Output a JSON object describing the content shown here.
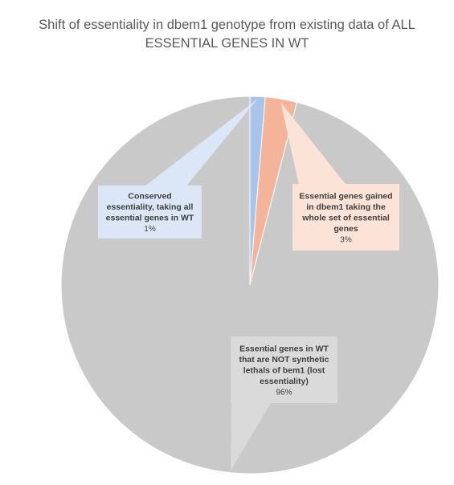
{
  "chart_data": {
    "type": "pie",
    "title_lines": [
      "Shift of essentiality  in dbem1 genotype from existing data of ALL",
      "ESSENTIAL GENES IN WT"
    ],
    "slices": [
      {
        "name": "Conserved essentiality, taking all essential genes in WT",
        "label_lines": [
          "Conserved",
          "essentiality, taking all",
          "essential genes in WT"
        ],
        "value": 1.3,
        "percent_label": "1%",
        "color": "#a9c4eb",
        "callout_color": "#dbe6f6"
      },
      {
        "name": "Essential genes gained in dbem1 taking the whole set of essential genes",
        "label_lines": [
          "Essential genes gained",
          "in dbem1 taking the",
          "whole set of essential",
          "genes"
        ],
        "value": 2.7,
        "percent_label": "3%",
        "color": "#f4b49a",
        "callout_color": "#fbe3d7"
      },
      {
        "name": "Essential genes in WT that are NOT synthetic lethals of bem1 (lost essentiality)",
        "label_lines": [
          "Essential  genes in WT",
          "that are NOT synthetic",
          "lethals of bem1 (lost",
          "essentiality)"
        ],
        "value": 96,
        "percent_label": "96%",
        "color": "#c9c9c9",
        "callout_color": "#dadada"
      }
    ],
    "start_angle_deg": 0,
    "direction": "clockwise"
  },
  "colors": {
    "title": "#595959",
    "slice_stroke": "#ffffff",
    "label_text": "#404040"
  }
}
